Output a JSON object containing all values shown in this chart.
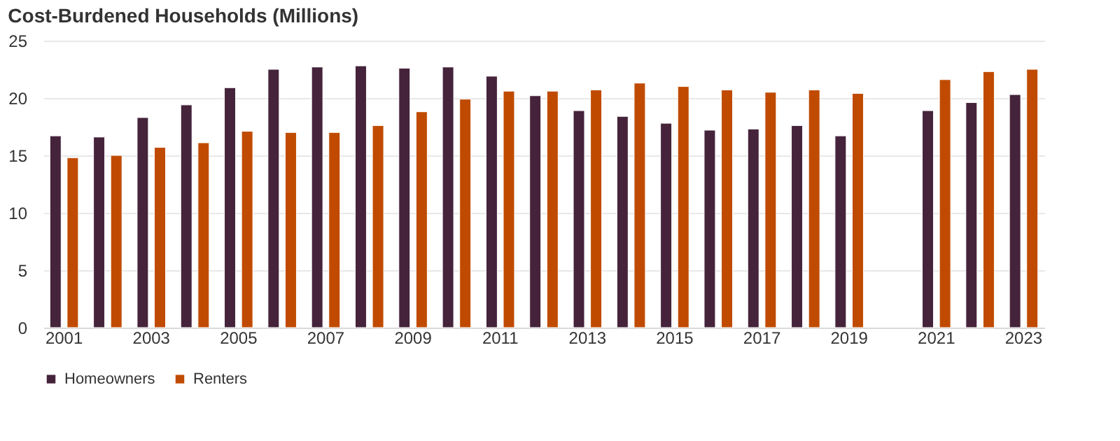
{
  "chart_data": {
    "type": "bar",
    "title": "Cost-Burdened Households (Millions)",
    "categories": [
      "2001",
      null,
      "2003",
      null,
      "2005",
      null,
      "2007",
      null,
      "2009",
      null,
      "2011",
      null,
      "2013",
      null,
      "2015",
      null,
      "2017",
      null,
      "2019",
      null,
      "2021",
      null,
      "2023"
    ],
    "series": [
      {
        "name": "Homeowners",
        "color": "#45243b",
        "values": [
          16.7,
          16.6,
          18.3,
          19.4,
          20.9,
          22.5,
          22.7,
          22.8,
          22.6,
          22.7,
          21.9,
          20.2,
          18.9,
          18.4,
          17.8,
          17.2,
          17.3,
          17.6,
          16.7,
          null,
          18.9,
          19.6,
          20.3
        ]
      },
      {
        "name": "Renters",
        "color": "#c04b00",
        "values": [
          14.8,
          15.0,
          15.7,
          16.1,
          17.1,
          17.0,
          17.0,
          17.6,
          18.8,
          19.9,
          20.6,
          20.6,
          20.7,
          21.3,
          21.0,
          20.7,
          20.5,
          20.7,
          20.4,
          null,
          21.6,
          22.3,
          22.5
        ]
      }
    ],
    "ylim": [
      0,
      25
    ],
    "yticks": [
      0,
      5,
      10,
      15,
      20,
      25
    ],
    "grid": "y",
    "legend": "bottom left"
  }
}
